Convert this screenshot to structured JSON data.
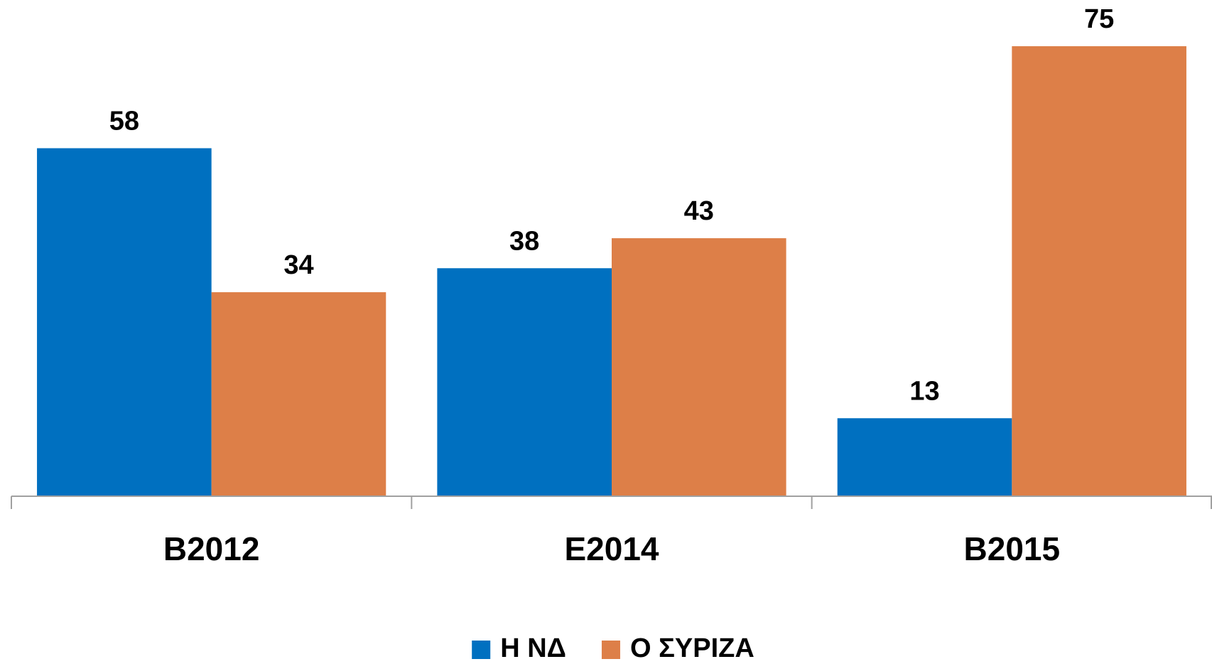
{
  "chart_data": {
    "type": "bar",
    "categories": [
      "B2012",
      "E2014",
      "B2015"
    ],
    "series": [
      {
        "name": "Η ΝΔ",
        "color": "#0070c0",
        "values": [
          58,
          38,
          13
        ]
      },
      {
        "name": "Ο ΣΥΡΙΖΑ",
        "color": "#dd7f48",
        "values": [
          34,
          43,
          75
        ]
      }
    ],
    "legend": "bottom"
  }
}
